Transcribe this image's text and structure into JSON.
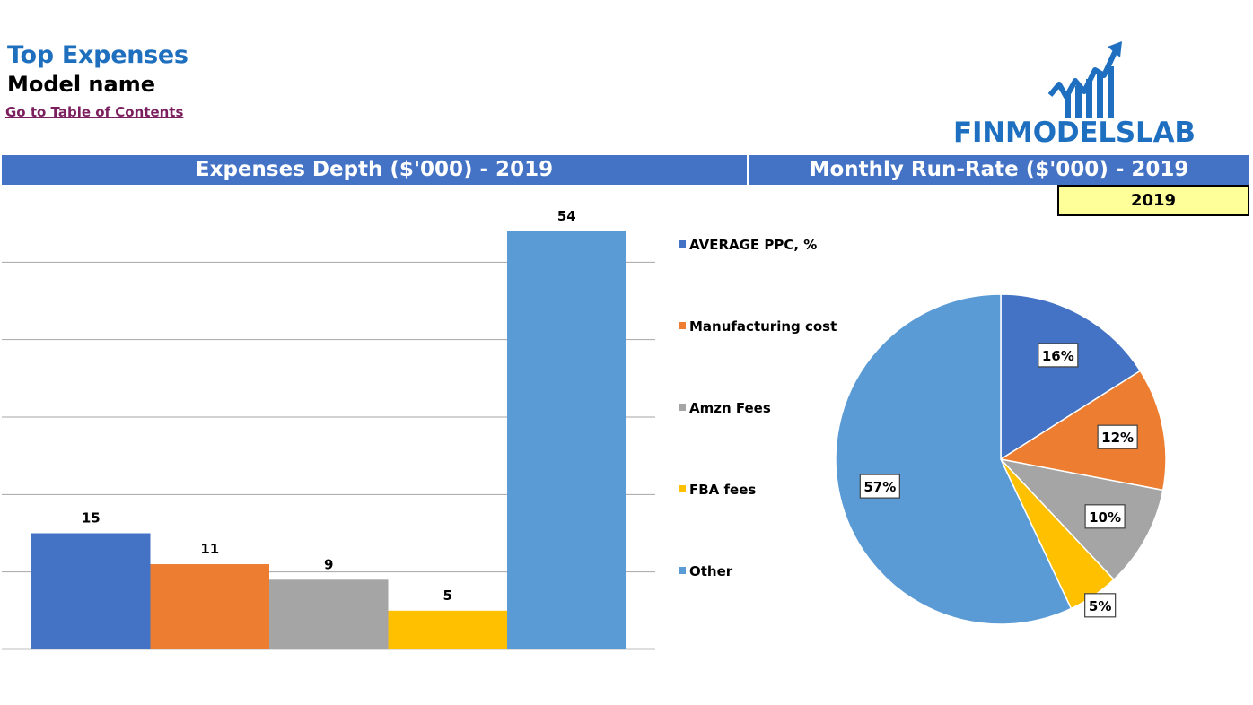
{
  "header": {
    "title": "Top Expenses",
    "model_name": "Model name",
    "toc_link": "Go to Table of Contents",
    "logo_text": "FINMODELSLAB"
  },
  "banners": {
    "left": "Expenses Depth ($'000) - 2019",
    "right": "Monthly Run-Rate ($'000) - 2019"
  },
  "year_selector": "2019",
  "colors": {
    "banner": "#4472c4",
    "title": "#1f6fbf",
    "link": "#7b1f5e",
    "year_box": "#ffff99"
  },
  "chart_data": [
    {
      "type": "bar",
      "categories": [
        "AVERAGE PPC, %",
        "Manufacturing cost",
        "Amzn Fees",
        "FBA fees",
        "Other"
      ],
      "values": [
        15,
        11,
        9,
        5,
        54
      ],
      "data_labels": [
        "15",
        "11",
        "9",
        "5",
        "54"
      ],
      "colors": [
        "#4472c4",
        "#ed7d31",
        "#a5a5a5",
        "#ffc000",
        "#5b9bd5"
      ],
      "ylim": [
        0,
        60
      ],
      "grid": true,
      "legend": "none"
    },
    {
      "type": "pie",
      "categories": [
        "AVERAGE PPC, %",
        "Manufacturing cost",
        "Amzn Fees",
        "FBA fees",
        "Other"
      ],
      "values": [
        16,
        12,
        10,
        5,
        57
      ],
      "data_labels": [
        "16%",
        "12%",
        "10%",
        "5%",
        "57%"
      ],
      "colors": [
        "#4472c4",
        "#ed7d31",
        "#a5a5a5",
        "#ffc000",
        "#5b9bd5"
      ],
      "legend": "left"
    }
  ]
}
